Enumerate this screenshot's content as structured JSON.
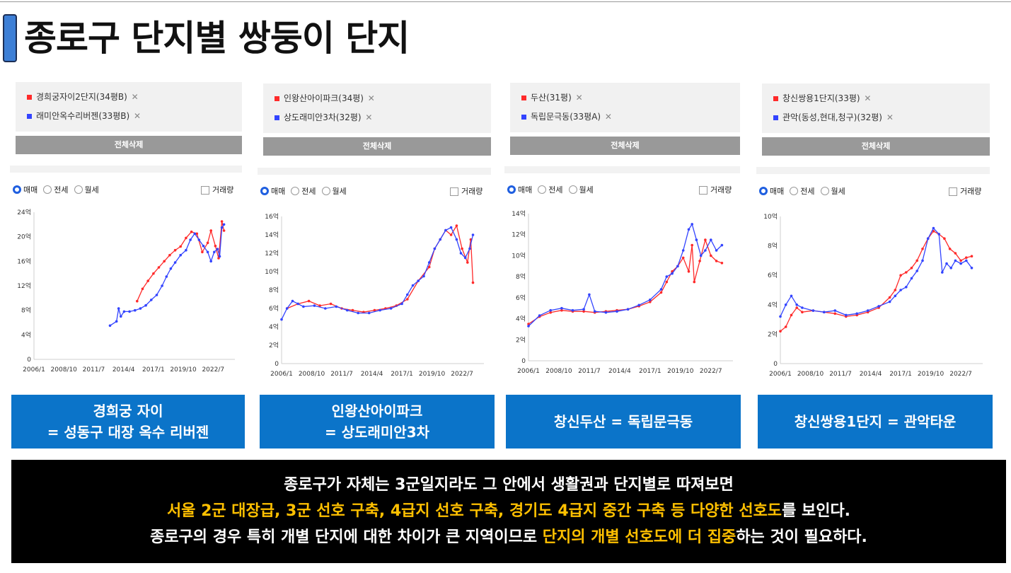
{
  "title": "종로구 단지별 쌍둥이 단지",
  "common": {
    "delete_all": "전체삭제",
    "radio_options": [
      "매매",
      "전세",
      "월세"
    ],
    "volume_label": "거래량",
    "x_ticks": [
      "2006/1",
      "2008/10",
      "2011/7",
      "2014/4",
      "2017/1",
      "2019/10",
      "2022/7"
    ],
    "remove_icon": "close-icon"
  },
  "chart_data": [
    {
      "type": "line",
      "series": [
        {
          "name": "경희궁자이2단지(34평B)",
          "color": "#ff2a2a",
          "points": [
            [
              2015.5,
              9.5
            ],
            [
              2016.0,
              11.5
            ],
            [
              2016.5,
              12.8
            ],
            [
              2017.0,
              14.0
            ],
            [
              2017.5,
              15.0
            ],
            [
              2018.0,
              16.0
            ],
            [
              2018.5,
              17.0
            ],
            [
              2019.0,
              17.8
            ],
            [
              2019.5,
              18.4
            ],
            [
              2020.0,
              19.8
            ],
            [
              2020.5,
              20.8
            ],
            [
              2021.0,
              20.5
            ],
            [
              2021.5,
              17.5
            ],
            [
              2022.0,
              19.0
            ],
            [
              2022.3,
              21.0
            ],
            [
              2022.7,
              18.5
            ],
            [
              2023.0,
              16.5
            ],
            [
              2023.3,
              22.5
            ],
            [
              2023.5,
              21.0
            ]
          ]
        },
        {
          "name": "래미안옥수리버젠(33평B)",
          "color": "#3344ff",
          "points": [
            [
              2013.0,
              5.5
            ],
            [
              2013.6,
              6.2
            ],
            [
              2013.8,
              8.3
            ],
            [
              2014.0,
              7.0
            ],
            [
              2014.3,
              7.8
            ],
            [
              2014.8,
              7.8
            ],
            [
              2015.3,
              8.0
            ],
            [
              2015.8,
              8.3
            ],
            [
              2016.3,
              8.8
            ],
            [
              2016.8,
              9.7
            ],
            [
              2017.3,
              10.5
            ],
            [
              2017.8,
              12.0
            ],
            [
              2018.2,
              13.5
            ],
            [
              2018.6,
              14.8
            ],
            [
              2019.0,
              15.8
            ],
            [
              2019.5,
              17.0
            ],
            [
              2020.0,
              17.8
            ],
            [
              2020.4,
              19.5
            ],
            [
              2020.8,
              20.5
            ],
            [
              2021.2,
              19.5
            ],
            [
              2021.6,
              18.5
            ],
            [
              2022.0,
              17.5
            ],
            [
              2022.3,
              16.0
            ],
            [
              2022.6,
              17.5
            ],
            [
              2022.9,
              18.0
            ],
            [
              2023.1,
              16.8
            ],
            [
              2023.3,
              21.5
            ],
            [
              2023.5,
              22.0
            ]
          ]
        }
      ],
      "y_ticks": [
        "0",
        "4억",
        "8억",
        "12억",
        "16억",
        "20억",
        "24억"
      ],
      "ylim": [
        0,
        24
      ]
    },
    {
      "type": "line",
      "series": [
        {
          "name": "인왕산아이파크(34평)",
          "color": "#ff2a2a",
          "points": [
            [
              2006.5,
              6.0
            ],
            [
              2007.5,
              6.5
            ],
            [
              2008.5,
              6.8
            ],
            [
              2009.5,
              6.3
            ],
            [
              2010.5,
              6.5
            ],
            [
              2011.5,
              6.0
            ],
            [
              2012.5,
              5.8
            ],
            [
              2013.5,
              5.6
            ],
            [
              2014.5,
              5.8
            ],
            [
              2015.5,
              6.0
            ],
            [
              2016.5,
              6.3
            ],
            [
              2017.5,
              7.0
            ],
            [
              2018.5,
              9.0
            ],
            [
              2019.5,
              10.5
            ],
            [
              2020.0,
              12.5
            ],
            [
              2020.5,
              13.5
            ],
            [
              2021.0,
              14.5
            ],
            [
              2021.5,
              14.0
            ],
            [
              2022.0,
              15.0
            ],
            [
              2022.5,
              12.5
            ],
            [
              2023.0,
              11.0
            ],
            [
              2023.3,
              13.5
            ],
            [
              2023.5,
              8.8
            ]
          ]
        },
        {
          "name": "상도래미안3차(32평)",
          "color": "#3344ff",
          "points": [
            [
              2006.0,
              4.8
            ],
            [
              2006.5,
              6.0
            ],
            [
              2007.0,
              6.8
            ],
            [
              2007.5,
              6.5
            ],
            [
              2008.0,
              6.2
            ],
            [
              2009.0,
              6.3
            ],
            [
              2010.0,
              6.0
            ],
            [
              2011.0,
              6.2
            ],
            [
              2012.0,
              5.8
            ],
            [
              2013.0,
              5.5
            ],
            [
              2014.0,
              5.5
            ],
            [
              2015.0,
              5.8
            ],
            [
              2016.0,
              6.0
            ],
            [
              2017.0,
              6.5
            ],
            [
              2017.5,
              7.5
            ],
            [
              2018.0,
              8.5
            ],
            [
              2018.5,
              9.0
            ],
            [
              2019.0,
              9.5
            ],
            [
              2019.5,
              11.0
            ],
            [
              2020.0,
              12.5
            ],
            [
              2020.5,
              13.5
            ],
            [
              2021.0,
              14.5
            ],
            [
              2021.5,
              14.8
            ],
            [
              2022.0,
              13.5
            ],
            [
              2022.4,
              12.0
            ],
            [
              2022.8,
              11.5
            ],
            [
              2023.2,
              12.5
            ],
            [
              2023.5,
              14.0
            ]
          ]
        }
      ],
      "y_ticks": [
        "0",
        "2억",
        "4억",
        "6억",
        "8억",
        "10억",
        "12억",
        "14억",
        "16억"
      ],
      "ylim": [
        0,
        16
      ]
    },
    {
      "type": "line",
      "series": [
        {
          "name": "두산(31평)",
          "color": "#ff2a2a",
          "points": [
            [
              2006.0,
              3.5
            ],
            [
              2007.0,
              4.2
            ],
            [
              2008.0,
              4.6
            ],
            [
              2009.0,
              4.8
            ],
            [
              2010.0,
              4.7
            ],
            [
              2011.0,
              4.7
            ],
            [
              2012.0,
              4.6
            ],
            [
              2013.0,
              4.7
            ],
            [
              2014.0,
              4.8
            ],
            [
              2015.0,
              4.9
            ],
            [
              2016.0,
              5.2
            ],
            [
              2017.0,
              5.6
            ],
            [
              2018.0,
              6.5
            ],
            [
              2018.5,
              7.5
            ],
            [
              2019.0,
              8.5
            ],
            [
              2019.5,
              9.0
            ],
            [
              2020.0,
              9.8
            ],
            [
              2020.5,
              8.5
            ],
            [
              2020.8,
              11.0
            ],
            [
              2021.0,
              7.5
            ],
            [
              2021.5,
              9.5
            ],
            [
              2022.0,
              11.5
            ],
            [
              2022.5,
              10.0
            ],
            [
              2023.0,
              9.5
            ],
            [
              2023.5,
              9.3
            ]
          ]
        },
        {
          "name": "독립문극동(33평A)",
          "color": "#3344ff",
          "points": [
            [
              2006.0,
              3.3
            ],
            [
              2007.0,
              4.3
            ],
            [
              2008.0,
              4.8
            ],
            [
              2009.0,
              5.0
            ],
            [
              2010.0,
              4.8
            ],
            [
              2011.0,
              4.9
            ],
            [
              2011.5,
              6.3
            ],
            [
              2012.0,
              4.7
            ],
            [
              2013.0,
              4.6
            ],
            [
              2014.0,
              4.7
            ],
            [
              2015.0,
              4.9
            ],
            [
              2016.0,
              5.3
            ],
            [
              2017.0,
              5.8
            ],
            [
              2018.0,
              6.8
            ],
            [
              2018.5,
              8.0
            ],
            [
              2019.0,
              8.3
            ],
            [
              2019.5,
              9.0
            ],
            [
              2020.0,
              10.5
            ],
            [
              2020.5,
              12.5
            ],
            [
              2020.8,
              13.0
            ],
            [
              2021.2,
              11.5
            ],
            [
              2021.6,
              10.0
            ],
            [
              2022.0,
              10.5
            ],
            [
              2022.5,
              11.5
            ],
            [
              2023.0,
              10.5
            ],
            [
              2023.5,
              11.0
            ]
          ]
        }
      ],
      "y_ticks": [
        "0",
        "2억",
        "4억",
        "6억",
        "8억",
        "10억",
        "12억",
        "14억"
      ],
      "ylim": [
        0,
        14
      ]
    },
    {
      "type": "line",
      "series": [
        {
          "name": "창신쌍용1단지(33평)",
          "color": "#ff2a2a",
          "points": [
            [
              2006.0,
              2.2
            ],
            [
              2006.5,
              2.5
            ],
            [
              2007.0,
              3.3
            ],
            [
              2007.5,
              3.8
            ],
            [
              2008.0,
              3.5
            ],
            [
              2009.0,
              3.6
            ],
            [
              2010.0,
              3.5
            ],
            [
              2011.0,
              3.4
            ],
            [
              2012.0,
              3.2
            ],
            [
              2013.0,
              3.3
            ],
            [
              2014.0,
              3.5
            ],
            [
              2015.0,
              3.8
            ],
            [
              2016.0,
              4.5
            ],
            [
              2016.5,
              5.0
            ],
            [
              2017.0,
              6.0
            ],
            [
              2017.5,
              6.2
            ],
            [
              2018.0,
              6.5
            ],
            [
              2018.5,
              7.0
            ],
            [
              2019.0,
              7.8
            ],
            [
              2019.5,
              8.5
            ],
            [
              2020.0,
              9.0
            ],
            [
              2020.5,
              8.8
            ],
            [
              2021.0,
              8.5
            ],
            [
              2021.5,
              7.8
            ],
            [
              2022.0,
              7.5
            ],
            [
              2022.5,
              7.0
            ],
            [
              2023.0,
              7.2
            ],
            [
              2023.5,
              7.3
            ]
          ]
        },
        {
          "name": "관악(동성,현대,청구)(32평)",
          "color": "#3344ff",
          "points": [
            [
              2006.0,
              3.2
            ],
            [
              2006.5,
              4.0
            ],
            [
              2007.0,
              4.6
            ],
            [
              2007.5,
              4.0
            ],
            [
              2008.0,
              3.8
            ],
            [
              2009.0,
              3.6
            ],
            [
              2010.0,
              3.5
            ],
            [
              2011.0,
              3.6
            ],
            [
              2012.0,
              3.3
            ],
            [
              2013.0,
              3.4
            ],
            [
              2014.0,
              3.6
            ],
            [
              2015.0,
              3.9
            ],
            [
              2016.0,
              4.2
            ],
            [
              2016.5,
              4.6
            ],
            [
              2017.0,
              5.0
            ],
            [
              2017.5,
              5.2
            ],
            [
              2018.0,
              5.8
            ],
            [
              2018.5,
              6.3
            ],
            [
              2019.0,
              7.0
            ],
            [
              2019.5,
              8.5
            ],
            [
              2020.0,
              9.2
            ],
            [
              2020.5,
              8.8
            ],
            [
              2020.8,
              6.2
            ],
            [
              2021.2,
              6.8
            ],
            [
              2021.6,
              6.5
            ],
            [
              2022.0,
              7.0
            ],
            [
              2022.5,
              6.8
            ],
            [
              2023.0,
              7.0
            ],
            [
              2023.5,
              6.5
            ]
          ]
        }
      ],
      "y_ticks": [
        "0",
        "2억",
        "4억",
        "6억",
        "8억",
        "10억"
      ],
      "ylim": [
        0,
        10
      ]
    }
  ],
  "captions": [
    [
      "경희궁 자이",
      "= 성동구 대장 옥수 리버젠"
    ],
    [
      "인왕산아이파크",
      "= 상도래미안3차"
    ],
    [
      "창신두산 = 독립문극동"
    ],
    [
      "창신쌍용1단지 = 관악타운"
    ]
  ],
  "bottom": {
    "line1": "종로구가 자체는 3군일지라도 그 안에서 생활권과 단지별로 따져보면",
    "line2_hl": "서울 2군 대장급, 3군 선호 구축, 4급지 선호 구축, 경기도 4급지 중간 구축 등 다양한 선호도",
    "line2_rest": "를 보인다.",
    "line3_a": "종로구의 경우 특히 개별 단지에 대한 차이가 큰 지역이므로 ",
    "line3_hl": "단지의 개별 선호도에 더 집중",
    "line3_b": "하는 것이 필요하다."
  }
}
